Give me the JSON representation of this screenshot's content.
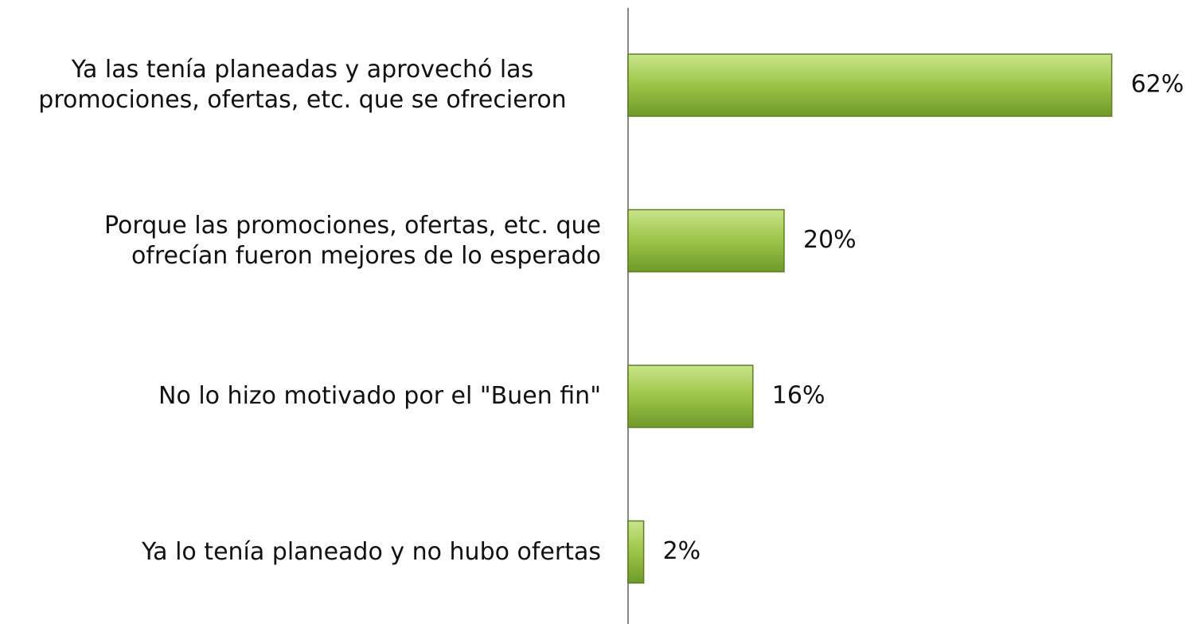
{
  "chart_data": {
    "type": "barh",
    "categories": [
      "Ya las tenía planeadas y aprovechó las promociones, ofertas, etc. que se ofrecieron",
      "Porque las promociones, ofertas, etc. que ofrecían fueron mejores de lo esperado",
      "No lo hizo motivado por el \"Buen fin\"",
      "Ya lo tenía planeado y no hubo ofertas"
    ],
    "values": [
      62,
      20,
      16,
      2
    ],
    "value_labels": [
      "62%",
      "20%",
      "16%",
      "2%"
    ],
    "color": "#9cc447"
  }
}
